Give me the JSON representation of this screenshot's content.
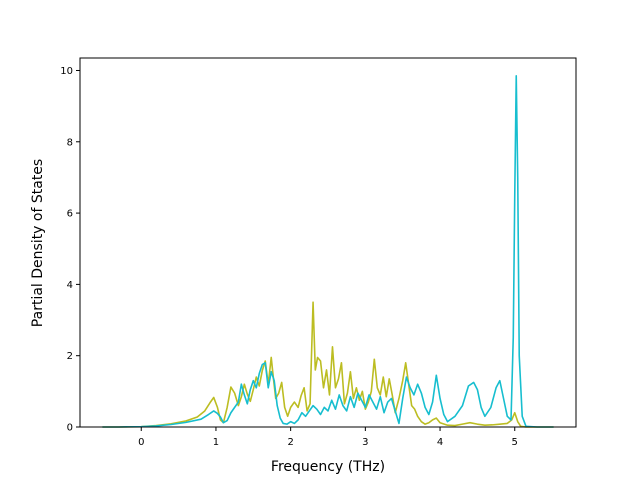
{
  "chart_data": {
    "type": "line",
    "title": "",
    "xlabel": "Frequency (THz)",
    "ylabel": "Partial Density of States",
    "xlim": [
      -0.82,
      5.82
    ],
    "ylim": [
      0,
      10.35
    ],
    "xticks": [
      0,
      1,
      2,
      3,
      4,
      5
    ],
    "yticks": [
      0,
      2,
      4,
      6,
      8,
      10
    ],
    "grid": false,
    "legend": "none",
    "series": [
      {
        "color": "#bcbd22",
        "points": [
          [
            -0.52,
            0
          ],
          [
            -0.3,
            0
          ],
          [
            0,
            0.01
          ],
          [
            0.2,
            0.04
          ],
          [
            0.4,
            0.09
          ],
          [
            0.6,
            0.17
          ],
          [
            0.75,
            0.28
          ],
          [
            0.85,
            0.45
          ],
          [
            0.92,
            0.68
          ],
          [
            0.97,
            0.83
          ],
          [
            1.02,
            0.55
          ],
          [
            1.06,
            0.2
          ],
          [
            1.1,
            0.12
          ],
          [
            1.15,
            0.55
          ],
          [
            1.2,
            1.12
          ],
          [
            1.25,
            0.95
          ],
          [
            1.3,
            0.6
          ],
          [
            1.34,
            0.85
          ],
          [
            1.38,
            1.2
          ],
          [
            1.42,
            0.92
          ],
          [
            1.46,
            0.72
          ],
          [
            1.5,
            1.05
          ],
          [
            1.54,
            1.4
          ],
          [
            1.58,
            1.15
          ],
          [
            1.62,
            1.58
          ],
          [
            1.66,
            1.85
          ],
          [
            1.7,
            1.2
          ],
          [
            1.74,
            1.95
          ],
          [
            1.77,
            1.35
          ],
          [
            1.8,
            0.8
          ],
          [
            1.84,
            0.95
          ],
          [
            1.88,
            1.25
          ],
          [
            1.92,
            0.55
          ],
          [
            1.96,
            0.3
          ],
          [
            2.0,
            0.55
          ],
          [
            2.05,
            0.7
          ],
          [
            2.1,
            0.55
          ],
          [
            2.14,
            0.88
          ],
          [
            2.18,
            1.1
          ],
          [
            2.22,
            0.45
          ],
          [
            2.26,
            0.65
          ],
          [
            2.3,
            3.5
          ],
          [
            2.33,
            1.6
          ],
          [
            2.36,
            1.95
          ],
          [
            2.4,
            1.85
          ],
          [
            2.44,
            1.1
          ],
          [
            2.48,
            1.6
          ],
          [
            2.52,
            0.9
          ],
          [
            2.56,
            2.25
          ],
          [
            2.6,
            1.1
          ],
          [
            2.64,
            1.35
          ],
          [
            2.68,
            1.8
          ],
          [
            2.72,
            0.65
          ],
          [
            2.76,
            0.95
          ],
          [
            2.8,
            1.55
          ],
          [
            2.84,
            0.8
          ],
          [
            2.88,
            1.1
          ],
          [
            2.92,
            0.75
          ],
          [
            2.96,
            1.0
          ],
          [
            3.0,
            0.5
          ],
          [
            3.04,
            0.7
          ],
          [
            3.08,
            1.0
          ],
          [
            3.12,
            1.9
          ],
          [
            3.16,
            1.1
          ],
          [
            3.2,
            0.9
          ],
          [
            3.24,
            1.4
          ],
          [
            3.28,
            0.85
          ],
          [
            3.32,
            1.35
          ],
          [
            3.36,
            0.9
          ],
          [
            3.4,
            0.4
          ],
          [
            3.45,
            0.8
          ],
          [
            3.5,
            1.3
          ],
          [
            3.54,
            1.8
          ],
          [
            3.58,
            1.2
          ],
          [
            3.62,
            0.6
          ],
          [
            3.66,
            0.5
          ],
          [
            3.7,
            0.3
          ],
          [
            3.75,
            0.15
          ],
          [
            3.8,
            0.08
          ],
          [
            3.85,
            0.12
          ],
          [
            3.9,
            0.2
          ],
          [
            3.95,
            0.25
          ],
          [
            4.0,
            0.12
          ],
          [
            4.1,
            0.05
          ],
          [
            4.2,
            0.04
          ],
          [
            4.3,
            0.08
          ],
          [
            4.4,
            0.12
          ],
          [
            4.5,
            0.08
          ],
          [
            4.6,
            0.05
          ],
          [
            4.7,
            0.06
          ],
          [
            4.8,
            0.08
          ],
          [
            4.9,
            0.1
          ],
          [
            4.96,
            0.2
          ],
          [
            5.0,
            0.4
          ],
          [
            5.04,
            0.15
          ],
          [
            5.08,
            0.02
          ],
          [
            5.15,
            0
          ],
          [
            5.3,
            0
          ],
          [
            5.52,
            0
          ]
        ]
      },
      {
        "color": "#17becf",
        "points": [
          [
            -0.52,
            0
          ],
          [
            -0.3,
            0
          ],
          [
            0,
            0.01
          ],
          [
            0.2,
            0.03
          ],
          [
            0.4,
            0.07
          ],
          [
            0.6,
            0.13
          ],
          [
            0.8,
            0.22
          ],
          [
            0.9,
            0.35
          ],
          [
            0.97,
            0.45
          ],
          [
            1.02,
            0.38
          ],
          [
            1.06,
            0.28
          ],
          [
            1.1,
            0.12
          ],
          [
            1.15,
            0.18
          ],
          [
            1.2,
            0.4
          ],
          [
            1.25,
            0.55
          ],
          [
            1.3,
            0.7
          ],
          [
            1.34,
            1.2
          ],
          [
            1.38,
            0.9
          ],
          [
            1.42,
            0.65
          ],
          [
            1.46,
            1.05
          ],
          [
            1.5,
            1.3
          ],
          [
            1.54,
            1.1
          ],
          [
            1.58,
            1.5
          ],
          [
            1.62,
            1.75
          ],
          [
            1.66,
            1.8
          ],
          [
            1.7,
            1.1
          ],
          [
            1.74,
            1.55
          ],
          [
            1.78,
            1.3
          ],
          [
            1.82,
            0.6
          ],
          [
            1.86,
            0.25
          ],
          [
            1.9,
            0.1
          ],
          [
            1.95,
            0.08
          ],
          [
            2.0,
            0.15
          ],
          [
            2.05,
            0.1
          ],
          [
            2.1,
            0.2
          ],
          [
            2.15,
            0.4
          ],
          [
            2.2,
            0.3
          ],
          [
            2.25,
            0.45
          ],
          [
            2.3,
            0.6
          ],
          [
            2.35,
            0.5
          ],
          [
            2.4,
            0.35
          ],
          [
            2.45,
            0.55
          ],
          [
            2.5,
            0.45
          ],
          [
            2.55,
            0.75
          ],
          [
            2.6,
            0.5
          ],
          [
            2.65,
            0.9
          ],
          [
            2.7,
            0.6
          ],
          [
            2.75,
            0.45
          ],
          [
            2.8,
            0.85
          ],
          [
            2.85,
            0.55
          ],
          [
            2.9,
            0.95
          ],
          [
            2.95,
            0.75
          ],
          [
            3.0,
            0.55
          ],
          [
            3.05,
            0.9
          ],
          [
            3.1,
            0.7
          ],
          [
            3.15,
            0.5
          ],
          [
            3.2,
            0.85
          ],
          [
            3.25,
            0.4
          ],
          [
            3.3,
            0.7
          ],
          [
            3.35,
            0.8
          ],
          [
            3.4,
            0.45
          ],
          [
            3.45,
            0.1
          ],
          [
            3.5,
            0.8
          ],
          [
            3.55,
            1.4
          ],
          [
            3.6,
            1.1
          ],
          [
            3.65,
            0.9
          ],
          [
            3.7,
            1.2
          ],
          [
            3.75,
            0.95
          ],
          [
            3.8,
            0.55
          ],
          [
            3.85,
            0.35
          ],
          [
            3.9,
            0.7
          ],
          [
            3.95,
            1.45
          ],
          [
            4.0,
            0.8
          ],
          [
            4.05,
            0.35
          ],
          [
            4.1,
            0.15
          ],
          [
            4.2,
            0.3
          ],
          [
            4.3,
            0.6
          ],
          [
            4.38,
            1.15
          ],
          [
            4.45,
            1.25
          ],
          [
            4.5,
            1.05
          ],
          [
            4.55,
            0.55
          ],
          [
            4.6,
            0.3
          ],
          [
            4.68,
            0.55
          ],
          [
            4.75,
            1.1
          ],
          [
            4.8,
            1.3
          ],
          [
            4.85,
            0.8
          ],
          [
            4.9,
            0.3
          ],
          [
            4.95,
            0.2
          ],
          [
            4.98,
            2.5
          ],
          [
            5.0,
            6.5
          ],
          [
            5.02,
            9.85
          ],
          [
            5.04,
            7.0
          ],
          [
            5.06,
            2.0
          ],
          [
            5.1,
            0.3
          ],
          [
            5.15,
            0.02
          ],
          [
            5.3,
            0
          ],
          [
            5.52,
            0
          ]
        ]
      }
    ]
  }
}
